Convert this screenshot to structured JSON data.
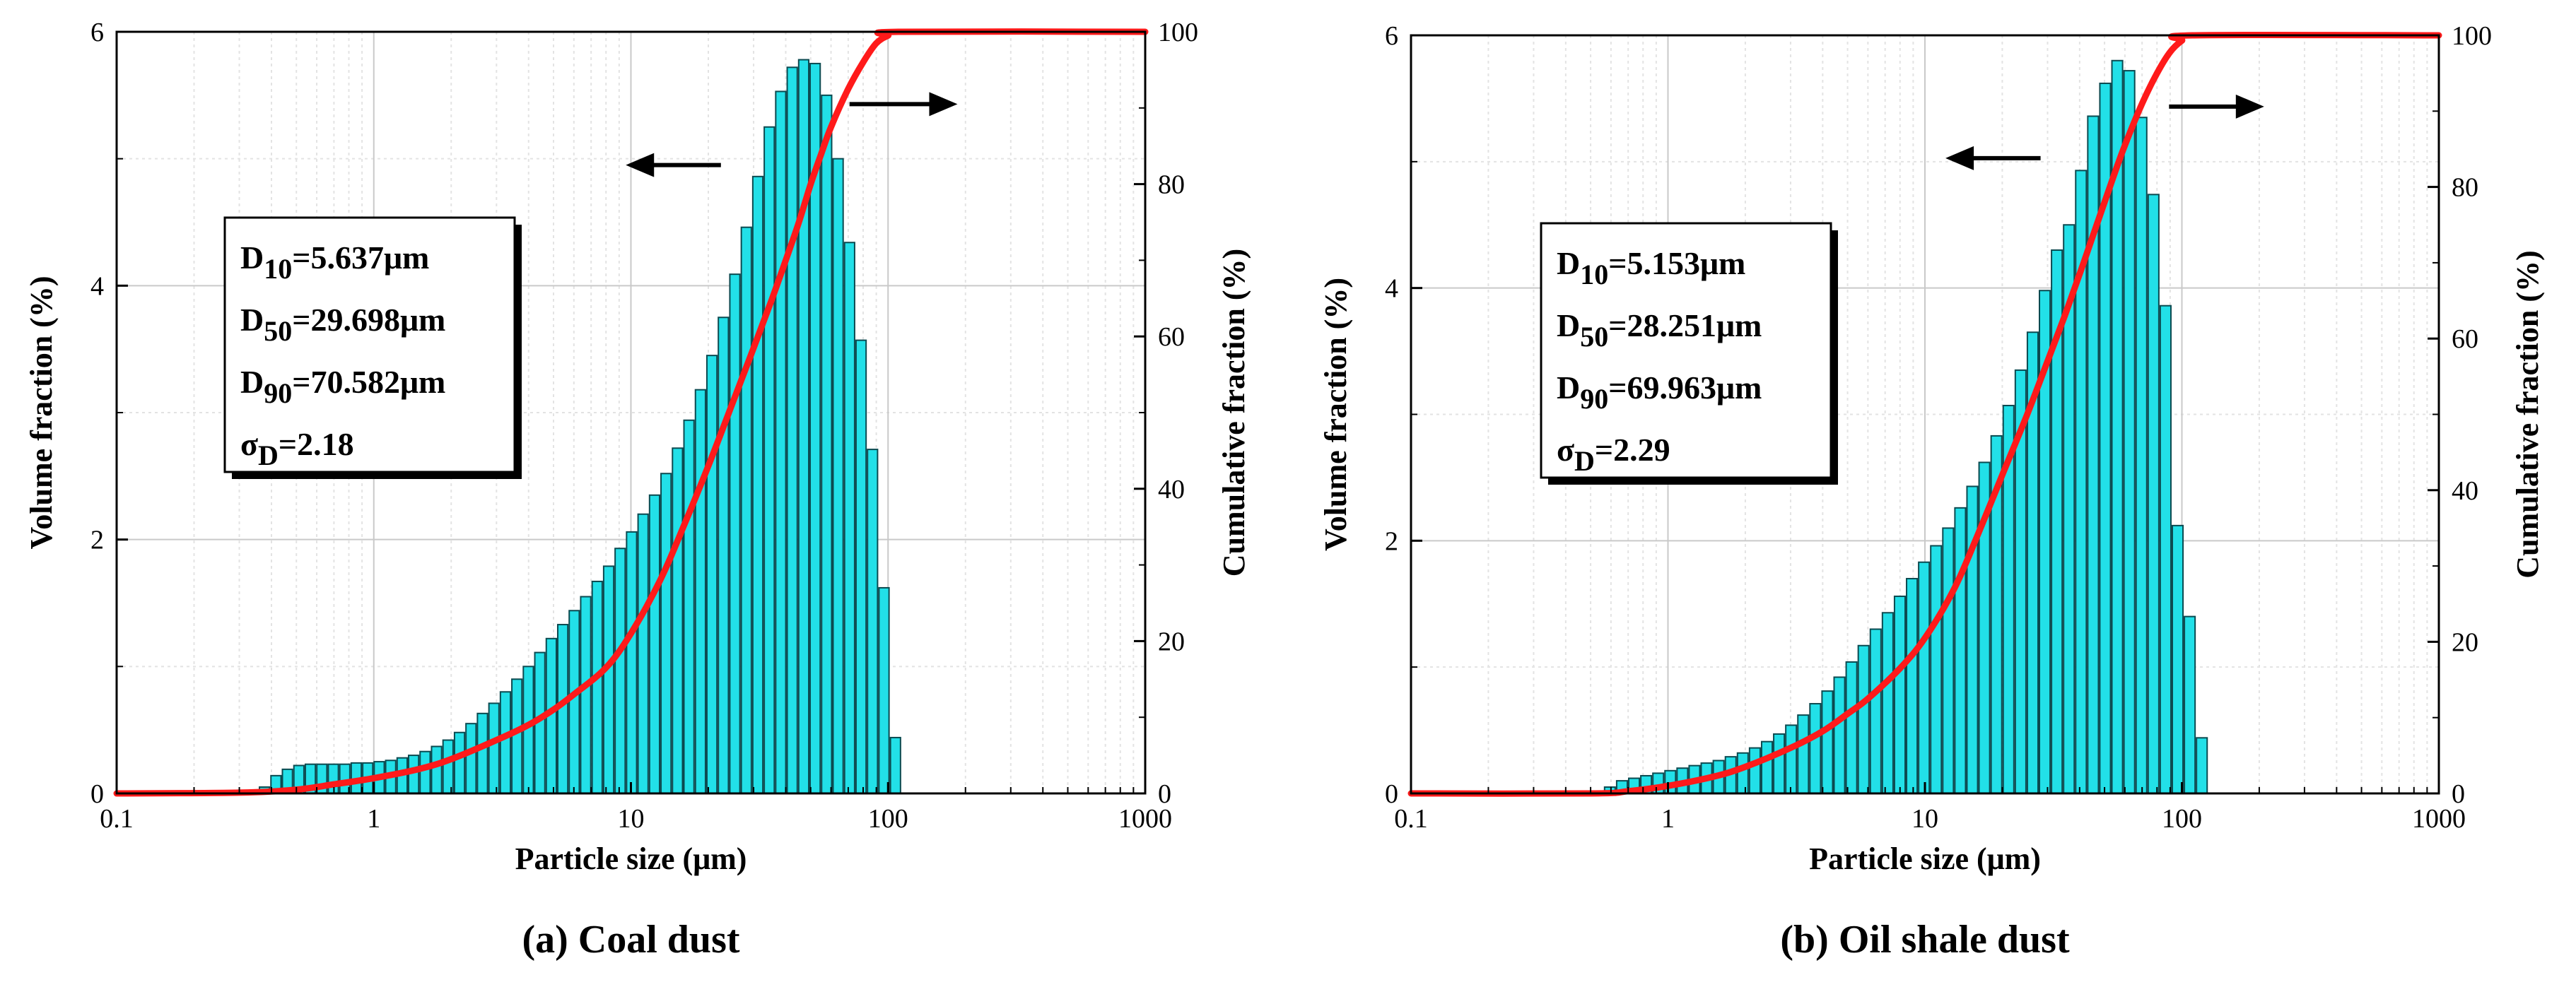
{
  "colors": {
    "bar_fill": "#22e0e8",
    "bar_stroke": "#0b4a50",
    "cumulative_line": "#ff1a1a",
    "grid_major": "#c9c9c9",
    "grid_minor": "#e3e3e3"
  },
  "chart_data": [
    {
      "type": "bar",
      "caption": "(a) Coal dust",
      "xlabel": "Particle size (μm)",
      "ylabel_left": "Volume fraction (%)",
      "ylabel_right": "Cumulative fraction (%)",
      "xscale": "log",
      "xlim": [
        0.1,
        1000
      ],
      "ylim_left": [
        0,
        6
      ],
      "ylim_right": [
        0,
        100
      ],
      "x_ticks": [
        "0.1",
        "1",
        "10",
        "100",
        "1000"
      ],
      "y_left_ticks": [
        "0",
        "2",
        "4",
        "6"
      ],
      "y_right_ticks": [
        "0",
        "20",
        "40",
        "60",
        "80",
        "100"
      ],
      "grid": true,
      "stats_box": {
        "position": "center-left",
        "d10": {
          "sym": "D",
          "sub": "10",
          "val": "=5.637μm"
        },
        "d50": {
          "sym": "D",
          "sub": "50",
          "val": "=29.698μm"
        },
        "d90": {
          "sym": "D",
          "sub": "90",
          "val": "=70.582μm"
        },
        "sigma": {
          "sym": "σ",
          "sub": "D",
          "val": "=2.18"
        }
      },
      "histogram": {
        "series_name": "Volume fraction",
        "axis": "left",
        "x_start": 0.357,
        "x_end": 112.5,
        "values": [
          0.05,
          0.14,
          0.19,
          0.22,
          0.23,
          0.23,
          0.23,
          0.23,
          0.24,
          0.24,
          0.25,
          0.26,
          0.28,
          0.3,
          0.33,
          0.37,
          0.42,
          0.48,
          0.55,
          0.63,
          0.71,
          0.8,
          0.9,
          1.0,
          1.11,
          1.22,
          1.33,
          1.44,
          1.55,
          1.67,
          1.79,
          1.93,
          2.06,
          2.2,
          2.35,
          2.52,
          2.72,
          2.94,
          3.18,
          3.45,
          3.75,
          4.09,
          4.46,
          4.86,
          5.25,
          5.53,
          5.72,
          5.78,
          5.75,
          5.5,
          5.0,
          4.34,
          3.57,
          2.71,
          1.62,
          0.44
        ]
      },
      "cumulative": {
        "series_name": "Cumulative fraction",
        "axis": "right",
        "x": [
          0.1,
          0.3,
          0.5,
          0.7,
          1,
          1.5,
          2,
          3,
          4,
          5,
          6,
          8,
          10,
          13,
          16,
          20,
          25,
          30,
          35,
          40,
          45,
          50,
          55,
          60,
          70,
          80,
          90,
          100,
          110,
          1000
        ],
        "y": [
          0,
          0.1,
          0.5,
          1.2,
          2.0,
          3.2,
          4.5,
          7.0,
          9.0,
          11.0,
          13.0,
          16.5,
          21.0,
          28.0,
          35.0,
          43.0,
          51.5,
          58.5,
          64.5,
          70.0,
          75.0,
          80.0,
          84.0,
          87.5,
          92.5,
          96.0,
          98.5,
          99.5,
          100,
          100
        ]
      },
      "annotations": [
        {
          "type": "arrow",
          "direction": "left",
          "points_to": "left axis"
        },
        {
          "type": "arrow",
          "direction": "right",
          "points_to": "right axis"
        }
      ]
    },
    {
      "type": "bar",
      "caption": "(b) Oil shale dust",
      "xlabel": "Particle size (μm)",
      "ylabel_left": "Volume fraction (%)",
      "ylabel_right": "Cumulative fraction (%)",
      "xscale": "log",
      "xlim": [
        0.1,
        1000
      ],
      "ylim_left": [
        0,
        6
      ],
      "ylim_right": [
        0,
        100
      ],
      "x_ticks": [
        "0.1",
        "1",
        "10",
        "100",
        "1000"
      ],
      "y_left_ticks": [
        "0",
        "2",
        "4",
        "6"
      ],
      "y_right_ticks": [
        "0",
        "20",
        "40",
        "60",
        "80",
        "100"
      ],
      "grid": true,
      "stats_box": {
        "position": "center-left",
        "d10": {
          "sym": "D",
          "sub": "10",
          "val": "=5.153μm"
        },
        "d50": {
          "sym": "D",
          "sub": "50",
          "val": "=28.251μm"
        },
        "d90": {
          "sym": "D",
          "sub": "90",
          "val": "=69.963μm"
        },
        "sigma": {
          "sym": "σ",
          "sub": "D",
          "val": "=2.29"
        }
      },
      "histogram": {
        "series_name": "Volume fraction",
        "axis": "left",
        "x_start": 0.563,
        "x_end": 126.2,
        "values": [
          0.05,
          0.1,
          0.12,
          0.14,
          0.16,
          0.18,
          0.2,
          0.22,
          0.24,
          0.26,
          0.29,
          0.32,
          0.36,
          0.41,
          0.47,
          0.54,
          0.62,
          0.71,
          0.81,
          0.92,
          1.04,
          1.17,
          1.3,
          1.43,
          1.56,
          1.7,
          1.83,
          1.96,
          2.1,
          2.26,
          2.43,
          2.62,
          2.83,
          3.07,
          3.35,
          3.65,
          3.98,
          4.3,
          4.5,
          4.93,
          5.36,
          5.62,
          5.8,
          5.72,
          5.35,
          4.74,
          3.86,
          2.12,
          1.4,
          0.44
        ]
      },
      "cumulative": {
        "series_name": "Cumulative fraction",
        "axis": "right",
        "x": [
          0.1,
          0.5,
          0.7,
          1,
          1.5,
          2,
          3,
          4,
          5,
          6,
          8,
          10,
          13,
          16,
          20,
          25,
          30,
          35,
          40,
          45,
          50,
          55,
          60,
          70,
          80,
          90,
          100,
          110,
          1000
        ],
        "y": [
          0,
          0,
          0.3,
          1.0,
          2.2,
          3.5,
          6.0,
          8.2,
          10.5,
          12.5,
          16.5,
          20.5,
          27.0,
          34.0,
          42.0,
          50.0,
          57.0,
          63.0,
          68.5,
          73.5,
          78.0,
          82.0,
          85.5,
          91.0,
          95.0,
          97.8,
          99.3,
          100,
          100
        ]
      },
      "annotations": [
        {
          "type": "arrow",
          "direction": "left",
          "points_to": "left axis"
        },
        {
          "type": "arrow",
          "direction": "right",
          "points_to": "right axis"
        }
      ]
    }
  ]
}
